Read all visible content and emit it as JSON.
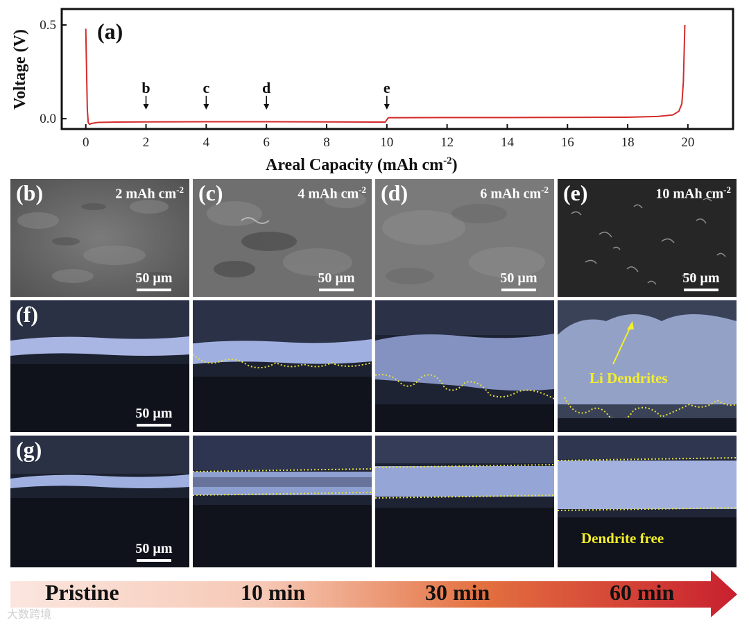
{
  "chart_data": {
    "type": "line",
    "panel_label": "(a)",
    "xlabel": "Areal Capacity (mAh cm",
    "xlabel_sup": "-2",
    "xlabel_tail": ")",
    "ylabel": "Voltage (V)",
    "xlim": [
      -0.8,
      21.5
    ],
    "ylim": [
      -0.055,
      0.585
    ],
    "x_ticks": [
      0,
      2,
      4,
      6,
      8,
      10,
      12,
      14,
      16,
      18,
      20
    ],
    "y_ticks": [
      {
        "value": 0.0,
        "label": "0.0"
      },
      {
        "value": 0.5,
        "label": "0.5"
      }
    ],
    "line_color": "#d42a2a",
    "series": [
      {
        "x": [
          0.0,
          0.02,
          0.05,
          0.08,
          0.12,
          0.2,
          0.4,
          1,
          2,
          4,
          6,
          8,
          9.5,
          9.95,
          10.0,
          10.05,
          12,
          14,
          16,
          18,
          19.0,
          19.5,
          19.7,
          19.8,
          19.85,
          19.9
        ],
        "y": [
          0.48,
          0.3,
          0.05,
          -0.02,
          -0.03,
          -0.025,
          -0.02,
          -0.018,
          -0.017,
          -0.016,
          -0.016,
          -0.017,
          -0.018,
          -0.018,
          -0.005,
          0.005,
          0.006,
          0.006,
          0.007,
          0.008,
          0.012,
          0.02,
          0.04,
          0.08,
          0.2,
          0.5
        ]
      }
    ],
    "annotations": [
      {
        "label": "b",
        "x": 2
      },
      {
        "label": "c",
        "x": 4
      },
      {
        "label": "d",
        "x": 6
      },
      {
        "label": "e",
        "x": 10
      }
    ]
  },
  "sem_row": [
    {
      "label": "(b)",
      "capacity": "2 mAh cm",
      "sup": "-2",
      "scale": "50 µm"
    },
    {
      "label": "(c)",
      "capacity": "4 mAh cm",
      "sup": "-2",
      "scale": "50 µm"
    },
    {
      "label": "(d)",
      "capacity": "6 mAh cm",
      "sup": "-2",
      "scale": "50 µm"
    },
    {
      "label": "(e)",
      "capacity": "10 mAh cm",
      "sup": "-2",
      "scale": "50 µm"
    }
  ],
  "row_f": {
    "label": "(f)",
    "scale": "50 µm",
    "annotation": "Li Dendrites"
  },
  "row_g": {
    "label": "(g)",
    "scale": "50 µm",
    "annotation": "Dendrite free"
  },
  "time_bar": {
    "labels": [
      "Pristine",
      "10 min",
      "30 min",
      "60 min"
    ]
  },
  "watermark": "大数跨境"
}
